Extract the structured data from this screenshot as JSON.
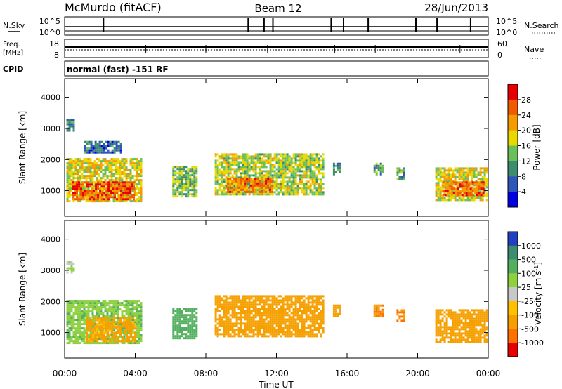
{
  "header": {
    "station": "McMurdo (fitACF)",
    "beam": "Beam 12",
    "date": "28/Jun/2013"
  },
  "noise_panel": {
    "left_label": "N.Sky",
    "right_label": "N.Search",
    "left_ticks": [
      "10^5",
      "10^0"
    ],
    "right_ticks": [
      "10^5",
      "10^0"
    ]
  },
  "freq_panel": {
    "left_label_line1": "Freq.",
    "left_label_line2": "[MHz]",
    "right_label": "Nave",
    "left_ticks": [
      "18",
      "8"
    ],
    "right_ticks": [
      "60",
      "0"
    ]
  },
  "cpid": {
    "label": "CPID",
    "text": "normal (fast) -151 RF"
  },
  "chart_data": [
    {
      "type": "heatmap",
      "name": "power",
      "ylabel": "Slant Range [km]",
      "ylim": [
        180,
        4600
      ],
      "yticks": [
        "1000",
        "2000",
        "3000",
        "4000"
      ],
      "xlim": [
        0,
        24
      ],
      "colorbar": {
        "label": "Power [dB]",
        "ticks": [
          "4",
          "8",
          "12",
          "16",
          "20",
          "24",
          "28"
        ],
        "colors": [
          "#0000e0",
          "#2e55b8",
          "#3c8c6e",
          "#6bbf59",
          "#e8d800",
          "#f59a00",
          "#f25a00",
          "#e60000"
        ]
      },
      "echo_regions": [
        {
          "t0": 0.1,
          "t1": 0.5,
          "r0": 2950,
          "r1": 3300,
          "v": 8
        },
        {
          "t0": 0.1,
          "t1": 4.3,
          "r0": 650,
          "r1": 2050,
          "v": 18
        },
        {
          "t0": 0.4,
          "t1": 3.9,
          "r0": 700,
          "r1": 1300,
          "v": 26
        },
        {
          "t0": 1.1,
          "t1": 3.2,
          "r0": 2200,
          "r1": 2600,
          "v": 8
        },
        {
          "t0": 6.1,
          "t1": 7.5,
          "r0": 850,
          "r1": 1800,
          "v": 14
        },
        {
          "t0": 8.5,
          "t1": 14.6,
          "r0": 900,
          "r1": 2200,
          "v": 16
        },
        {
          "t0": 9.2,
          "t1": 11.8,
          "r0": 950,
          "r1": 1400,
          "v": 24
        },
        {
          "t0": 15.2,
          "t1": 15.6,
          "r0": 1500,
          "r1": 1900,
          "v": 10
        },
        {
          "t0": 17.5,
          "t1": 18.0,
          "r0": 1500,
          "r1": 1900,
          "v": 12
        },
        {
          "t0": 18.8,
          "t1": 19.2,
          "r0": 1400,
          "r1": 1750,
          "v": 12
        },
        {
          "t0": 21.0,
          "t1": 23.9,
          "r0": 700,
          "r1": 1750,
          "v": 18
        },
        {
          "t0": 21.4,
          "t1": 23.7,
          "r0": 850,
          "r1": 1300,
          "v": 25
        }
      ]
    },
    {
      "type": "heatmap",
      "name": "velocity",
      "ylabel": "Slant Range [km]",
      "xlabel": "Time UT",
      "ylim": [
        180,
        4600
      ],
      "yticks": [
        "1000",
        "2000",
        "3000",
        "4000"
      ],
      "xlim": [
        0,
        24
      ],
      "xticks": [
        "00:00",
        "04:00",
        "08:00",
        "12:00",
        "16:00",
        "20:00",
        "00:00"
      ],
      "colorbar": {
        "label": "Velocity [m s^-1]",
        "ticks": [
          "1000",
          "500",
          "100",
          "25",
          "-25",
          "-100",
          "-500",
          "-1000"
        ],
        "colors": [
          "#2040c0",
          "#3c8c6e",
          "#54b060",
          "#8ed040",
          "#c8c8c8",
          "#ffc000",
          "#f5a000",
          "#ff7000",
          "#e60000"
        ]
      },
      "echo_regions": [
        {
          "t0": 0.1,
          "t1": 4.3,
          "r0": 650,
          "r1": 2050,
          "v": 80
        },
        {
          "t0": 1.2,
          "t1": 4.0,
          "r0": 700,
          "r1": 1500,
          "v": -150
        },
        {
          "t0": 0.1,
          "t1": 0.5,
          "r0": 2950,
          "r1": 3300,
          "v": 20
        },
        {
          "t0": 6.1,
          "t1": 7.5,
          "r0": 850,
          "r1": 1800,
          "v": 200
        },
        {
          "t0": 8.5,
          "t1": 14.6,
          "r0": 900,
          "r1": 2200,
          "v": -250
        },
        {
          "t0": 15.2,
          "t1": 15.6,
          "r0": 1500,
          "r1": 1900,
          "v": -250
        },
        {
          "t0": 17.5,
          "t1": 18.0,
          "r0": 1500,
          "r1": 1900,
          "v": -600
        },
        {
          "t0": 18.8,
          "t1": 19.2,
          "r0": 1400,
          "r1": 1750,
          "v": -600
        },
        {
          "t0": 21.0,
          "t1": 23.9,
          "r0": 700,
          "r1": 1750,
          "v": -250
        }
      ]
    }
  ]
}
